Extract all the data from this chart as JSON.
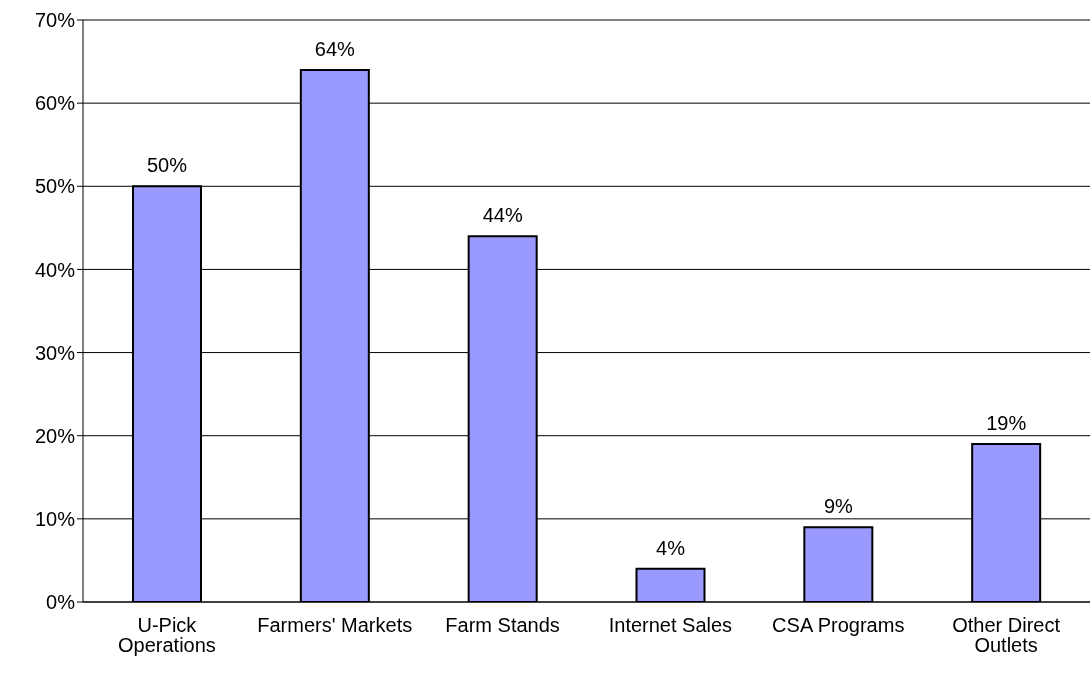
{
  "chart_data": {
    "type": "bar",
    "categories": [
      "U-Pick Operations",
      "Farmers' Markets",
      "Farm Stands",
      "Internet Sales",
      "CSA Programs",
      "Other Direct Outlets"
    ],
    "values": [
      50,
      64,
      44,
      4,
      9,
      19
    ],
    "value_labels": [
      "50%",
      "64%",
      "44%",
      "4%",
      "9%",
      "19%"
    ],
    "color": "#9999ff",
    "ylim": [
      0,
      70
    ],
    "yticks": [
      {
        "value": 0,
        "label": "0%"
      },
      {
        "value": 10,
        "label": "10%"
      },
      {
        "value": 20,
        "label": "20%"
      },
      {
        "value": 30,
        "label": "30%"
      },
      {
        "value": 40,
        "label": "40%"
      },
      {
        "value": 50,
        "label": "50%"
      },
      {
        "value": 60,
        "label": "60%"
      },
      {
        "value": 70,
        "label": "70%"
      }
    ],
    "grid": "y",
    "legend": false
  }
}
